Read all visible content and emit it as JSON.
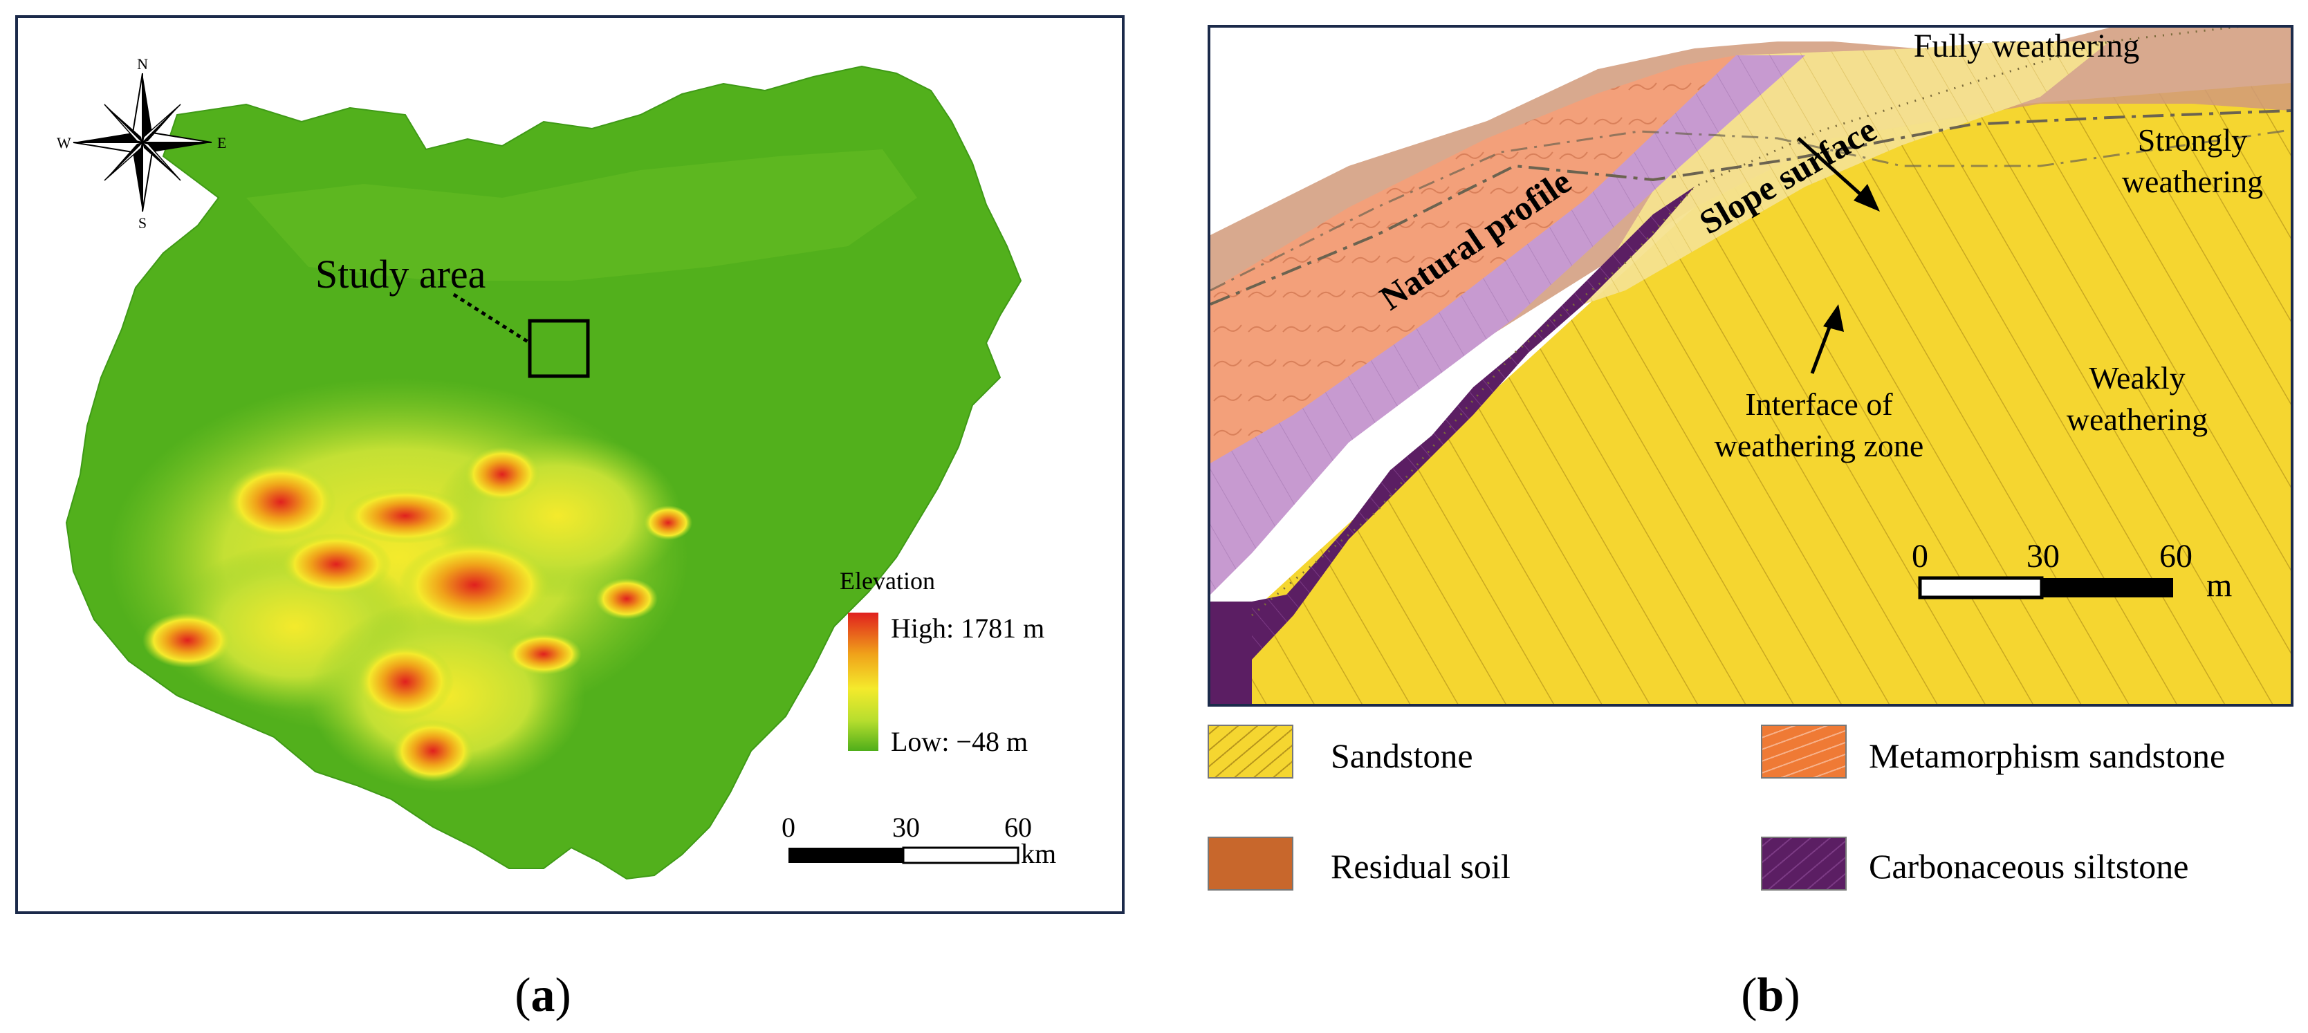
{
  "panel_a": {
    "label": "a",
    "compass": {
      "north": "N",
      "south": "S",
      "east": "E",
      "west": "W"
    },
    "study_area_label": "Study area",
    "legend": {
      "title": "Elevation",
      "high": "High: 1781 m",
      "low": "Low: −48 m",
      "colors": [
        "#e0201e",
        "#f0a21a",
        "#f4ea2c",
        "#b7de2e",
        "#4fae1a"
      ]
    },
    "scale_bar": {
      "ticks": [
        "0",
        "30",
        "60"
      ],
      "unit": "km"
    }
  },
  "panel_b": {
    "label": "b",
    "annotations": {
      "fully_weathering": "Fully weathering",
      "strongly_weathering_1": "Strongly",
      "strongly_weathering_2": "weathering",
      "weakly_weathering_1": "Weakly",
      "weakly_weathering_2": "weathering",
      "natural_profile": "Natural profile",
      "slope_surface": "Slope surface",
      "interface_1": "Interface of",
      "interface_2": "weathering zone"
    },
    "scale_bar": {
      "ticks": [
        "0",
        "30",
        "60"
      ],
      "unit": "m"
    },
    "legend": [
      {
        "label": "Sandstone",
        "color": "#f5d630"
      },
      {
        "label": "Metamorphism sandstone",
        "color": "#ef7a35"
      },
      {
        "label": "Residual soil",
        "color": "#c8672c"
      },
      {
        "label": "Carbonaceous siltstone",
        "color": "#5b1e63"
      }
    ]
  }
}
